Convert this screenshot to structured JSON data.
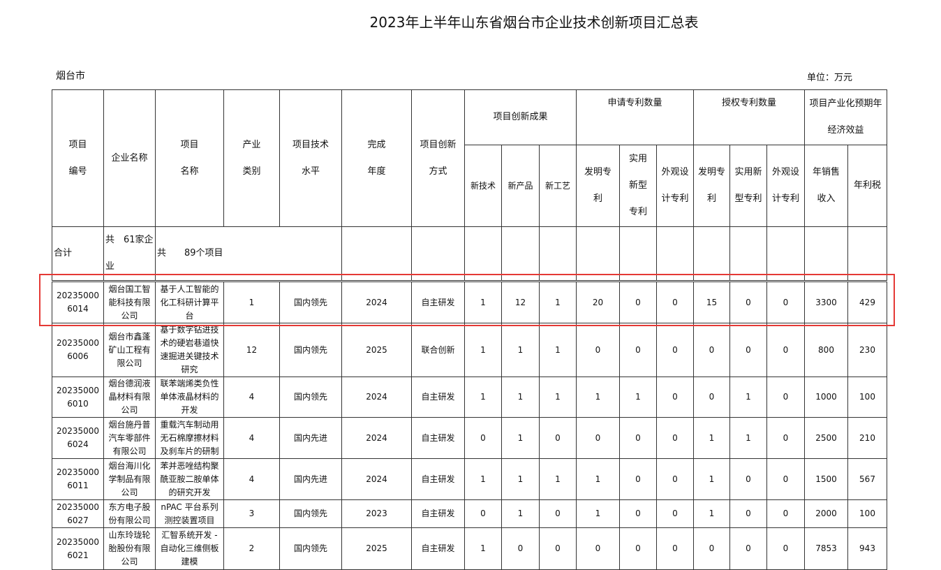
{
  "title": "2023年上半年山东省烟台市企业技术创新项目汇总表",
  "region": "烟台市",
  "unit": "单位：万元",
  "headers": {
    "id": "项目编号",
    "company": "企业名称",
    "project": "项目名称",
    "industry": "产业类别",
    "tech_level": "项目技术水平",
    "year": "完成年度",
    "mode": "项目创新方式",
    "results": "项目创新成果",
    "new_tech": "新技术",
    "new_product": "新产品",
    "new_process": "新工艺",
    "applied": "申请专利数量",
    "granted": "授权专利数量",
    "invention": "发明专利",
    "utility": "实用新型专利",
    "design": "外观设计专利",
    "benefit": "项目产业化预期年经济效益",
    "sales": "年销售收入",
    "tax": "年利税"
  },
  "total": {
    "label": "合计",
    "companies": "共　61家企业",
    "projects": "共　　89个项目"
  },
  "rows": [
    {
      "id": "202350006014",
      "company": "烟台国工智能科技有限公司",
      "project": "基于人工智能的化工科研计算平台",
      "industry": "1",
      "level": "国内领先",
      "year": "2024",
      "mode": "自主研发",
      "v": [
        "1",
        "12",
        "1",
        "20",
        "0",
        "0",
        "15",
        "0",
        "0",
        "3300",
        "429"
      ]
    },
    {
      "id": "202350006006",
      "company": "烟台市鑫蓬矿山工程有限公司",
      "project": "基于数字钻进技术的硬岩巷道快速掘进关键技术研究",
      "industry": "12",
      "level": "国内领先",
      "year": "2025",
      "mode": "联合创新",
      "v": [
        "1",
        "1",
        "1",
        "0",
        "0",
        "0",
        "0",
        "0",
        "0",
        "800",
        "230"
      ]
    },
    {
      "id": "202350006010",
      "company": "烟台德润液晶材料有限公司",
      "project": "联苯端烯类负性单体液晶材料的开发",
      "industry": "4",
      "level": "国内领先",
      "year": "2024",
      "mode": "自主研发",
      "v": [
        "1",
        "1",
        "1",
        "1",
        "1",
        "0",
        "0",
        "1",
        "0",
        "1000",
        "100"
      ]
    },
    {
      "id": "202350006024",
      "company": "烟台施丹普汽车零部件有限公司",
      "project": "重载汽车制动用无石棉摩擦材料及刹车片的研制",
      "industry": "4",
      "level": "国内先进",
      "year": "2024",
      "mode": "自主研发",
      "v": [
        "0",
        "1",
        "0",
        "0",
        "0",
        "0",
        "1",
        "1",
        "0",
        "2500",
        "210"
      ]
    },
    {
      "id": "202350006011",
      "company": "烟台海川化学制品有限公司",
      "project": "苯并恶唑结构聚酰亚胺二胺单体的研究开发",
      "industry": "4",
      "level": "国内先进",
      "year": "2024",
      "mode": "自主研发",
      "v": [
        "1",
        "1",
        "1",
        "1",
        "0",
        "0",
        "1",
        "0",
        "0",
        "1500",
        "567"
      ]
    },
    {
      "id": "202350006027",
      "company": "东方电子股份有限公司",
      "project": "nPAC 平台系列测控装置项目",
      "industry": "3",
      "level": "国内领先",
      "year": "2023",
      "mode": "自主研发",
      "v": [
        "0",
        "1",
        "0",
        "1",
        "0",
        "0",
        "1",
        "0",
        "0",
        "2000",
        "100"
      ]
    },
    {
      "id": "202350006021",
      "company": "山东玲珑轮胎股份有限公司",
      "project": "汇智系统开发 - 自动化三维侧板建模",
      "industry": "2",
      "level": "国内领先",
      "year": "2025",
      "mode": "自主研发",
      "v": [
        "1",
        "0",
        "0",
        "0",
        "0",
        "0",
        "0",
        "0",
        "0",
        "7853",
        "943"
      ]
    }
  ],
  "highlight_color": "#e53935"
}
